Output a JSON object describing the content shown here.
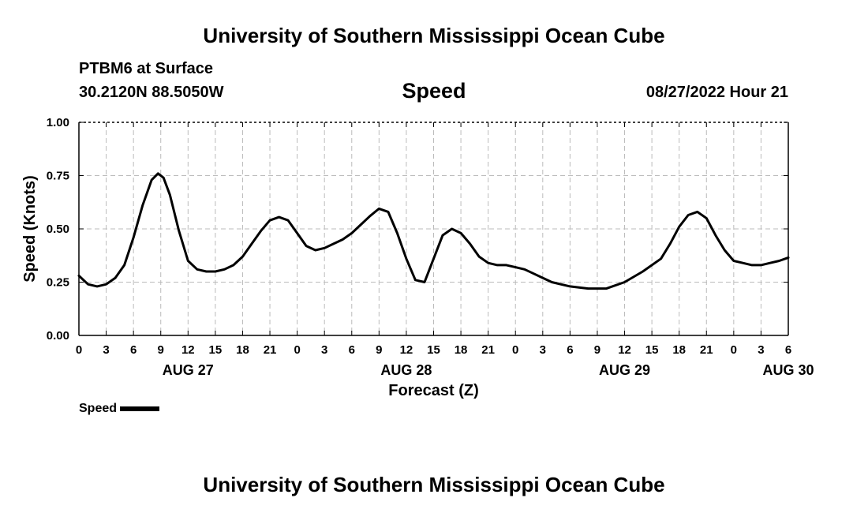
{
  "header": {
    "title_top": "University of Southern Mississippi Ocean Cube",
    "station": "PTBM6 at Surface",
    "coords": "30.2120N  88.5050W",
    "variable": "Speed",
    "datetime": "08/27/2022 Hour 21",
    "title_bottom": "University of Southern Mississippi Ocean Cube"
  },
  "legend": {
    "label": "Speed",
    "color": "#000000"
  },
  "chart_data": {
    "type": "line",
    "title": "Speed",
    "xlabel": "Forecast (Z)",
    "ylabel": "Speed (Knots)",
    "xlim": [
      0,
      78
    ],
    "ylim": [
      0,
      1
    ],
    "grid": true,
    "x_tick_labels": [
      "0",
      "3",
      "6",
      "9",
      "12",
      "15",
      "18",
      "21",
      "0",
      "3",
      "6",
      "9",
      "12",
      "15",
      "18",
      "21",
      "0",
      "3",
      "6",
      "9",
      "12",
      "15",
      "18",
      "21",
      "0",
      "3",
      "6"
    ],
    "y_ticks": [
      0,
      0.25,
      0.5,
      0.75,
      1.0
    ],
    "y_tick_labels": [
      "0.00",
      "0.25",
      "0.50",
      "0.75",
      "1.00"
    ],
    "date_labels": [
      {
        "x": 12,
        "label": "AUG 27"
      },
      {
        "x": 36,
        "label": "AUG 28"
      },
      {
        "x": 60,
        "label": "AUG 29"
      },
      {
        "x": 78,
        "label": "AUG 30"
      }
    ],
    "series": [
      {
        "name": "Speed",
        "color": "#000000",
        "x": [
          0,
          1,
          2,
          3,
          4,
          5,
          6,
          7,
          8,
          8.7,
          9.3,
          10,
          11,
          12,
          13,
          14,
          15,
          16,
          17,
          18,
          19,
          20,
          21,
          22,
          23,
          24,
          25,
          26,
          27,
          28,
          29,
          30,
          31,
          32,
          33,
          34,
          35,
          36,
          37,
          38,
          39,
          40,
          41,
          42,
          43,
          44,
          45,
          46,
          47,
          48,
          49,
          50,
          51,
          52,
          54,
          56,
          58,
          60,
          62,
          64,
          65,
          66,
          67,
          68,
          69,
          70,
          71,
          72,
          73,
          74,
          75,
          76,
          77,
          78
        ],
        "values": [
          0.28,
          0.24,
          0.23,
          0.24,
          0.27,
          0.33,
          0.46,
          0.61,
          0.73,
          0.76,
          0.74,
          0.66,
          0.49,
          0.35,
          0.31,
          0.3,
          0.3,
          0.31,
          0.33,
          0.37,
          0.43,
          0.49,
          0.54,
          0.555,
          0.54,
          0.48,
          0.42,
          0.4,
          0.41,
          0.43,
          0.45,
          0.48,
          0.52,
          0.56,
          0.595,
          0.58,
          0.48,
          0.36,
          0.26,
          0.25,
          0.36,
          0.47,
          0.5,
          0.48,
          0.43,
          0.37,
          0.34,
          0.33,
          0.33,
          0.32,
          0.31,
          0.29,
          0.27,
          0.25,
          0.23,
          0.22,
          0.22,
          0.25,
          0.3,
          0.36,
          0.43,
          0.51,
          0.565,
          0.58,
          0.55,
          0.47,
          0.4,
          0.35,
          0.34,
          0.33,
          0.33,
          0.34,
          0.35,
          0.365
        ]
      }
    ]
  }
}
